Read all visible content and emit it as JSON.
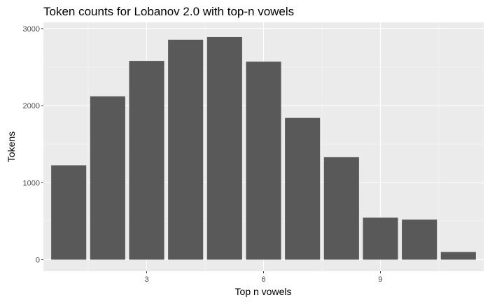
{
  "chart_data": {
    "type": "bar",
    "title": "Token counts for Lobanov 2.0 with top-n vowels",
    "xlabel": "Top n vowels",
    "ylabel": "Tokens",
    "categories": [
      1,
      2,
      3,
      4,
      5,
      6,
      7,
      8,
      9,
      10,
      11
    ],
    "values": [
      1225,
      2120,
      2580,
      2855,
      2890,
      2570,
      1840,
      1330,
      545,
      520,
      100
    ],
    "xlim": [
      0.35,
      11.65
    ],
    "ylim": [
      -150,
      3080
    ],
    "x_ticks": [
      3,
      6,
      9
    ],
    "x_tick_labels": [
      "3",
      "6",
      "9"
    ],
    "y_ticks": [
      0,
      1000,
      2000,
      3000
    ],
    "y_tick_labels": [
      "0",
      "1000",
      "2000",
      "3000"
    ],
    "grid": true,
    "colors": {
      "bar": "#595959",
      "panel": "#ebebeb",
      "grid_major": "#ffffff",
      "grid_minor": "#f5f5f5",
      "tick_text": "#4d4d4d",
      "tick_mark": "#333333"
    }
  }
}
